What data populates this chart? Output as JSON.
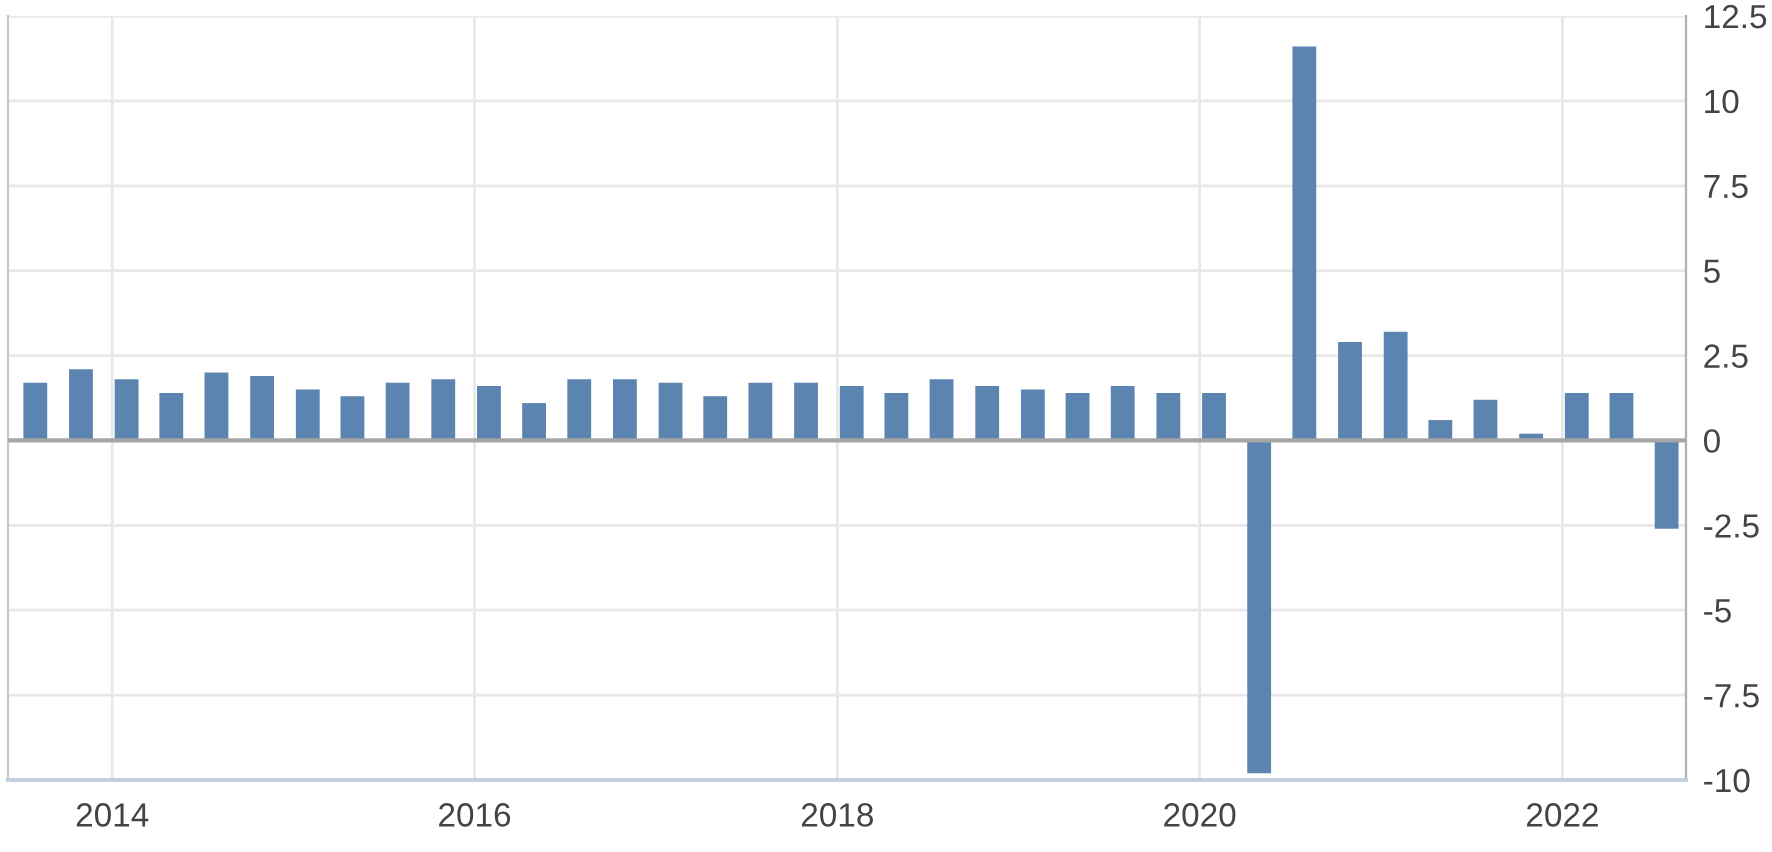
{
  "chart_data": {
    "type": "bar",
    "x": [
      "2013-07-30",
      "2013-10-30",
      "2014-01-30",
      "2014-04-30",
      "2014-07-30",
      "2014-10-30",
      "2015-01-30",
      "2015-04-30",
      "2015-07-30",
      "2015-10-30",
      "2016-01-30",
      "2016-04-30",
      "2016-07-30",
      "2016-10-30",
      "2017-01-30",
      "2017-04-30",
      "2017-07-30",
      "2017-10-30",
      "2018-01-30",
      "2018-04-30",
      "2018-07-30",
      "2018-10-30",
      "2019-01-30",
      "2019-04-30",
      "2019-07-30",
      "2019-10-30",
      "2020-01-30",
      "2020-04-30",
      "2020-07-30",
      "2020-10-30",
      "2021-01-30",
      "2021-04-30",
      "2021-07-30",
      "2021-10-30",
      "2022-01-30",
      "2022-04-30",
      "2022-07-30"
    ],
    "values": [
      1.7,
      2.1,
      1.8,
      1.4,
      2.0,
      1.9,
      1.5,
      1.3,
      1.7,
      1.8,
      1.6,
      1.1,
      1.8,
      1.8,
      1.7,
      1.3,
      1.7,
      1.7,
      1.6,
      1.4,
      1.8,
      1.6,
      1.5,
      1.4,
      1.6,
      1.4,
      1.4,
      -9.8,
      11.6,
      2.9,
      3.2,
      0.6,
      1.2,
      0.2,
      1.4,
      1.4,
      -2.6
    ],
    "color": "#5b84b1",
    "xlim": [
      "2013-06-05",
      "2022-09-07"
    ],
    "xticks": [
      {
        "value": "2014-01-01",
        "label": "2014"
      },
      {
        "value": "2016-01-01",
        "label": "2016"
      },
      {
        "value": "2018-01-01",
        "label": "2018"
      },
      {
        "value": "2020-01-01",
        "label": "2020"
      },
      {
        "value": "2022-01-01",
        "label": "2022"
      }
    ],
    "ylim": [
      -10,
      12.5
    ],
    "yticks": [
      -10,
      -7.5,
      -5,
      -2.5,
      0,
      2.5,
      5,
      7.5,
      10,
      12.5
    ],
    "ref_lines": [
      {
        "axis": "y",
        "value": 0,
        "label": null,
        "color": "#a6a6a6"
      }
    ],
    "grid": true,
    "legend": false
  }
}
